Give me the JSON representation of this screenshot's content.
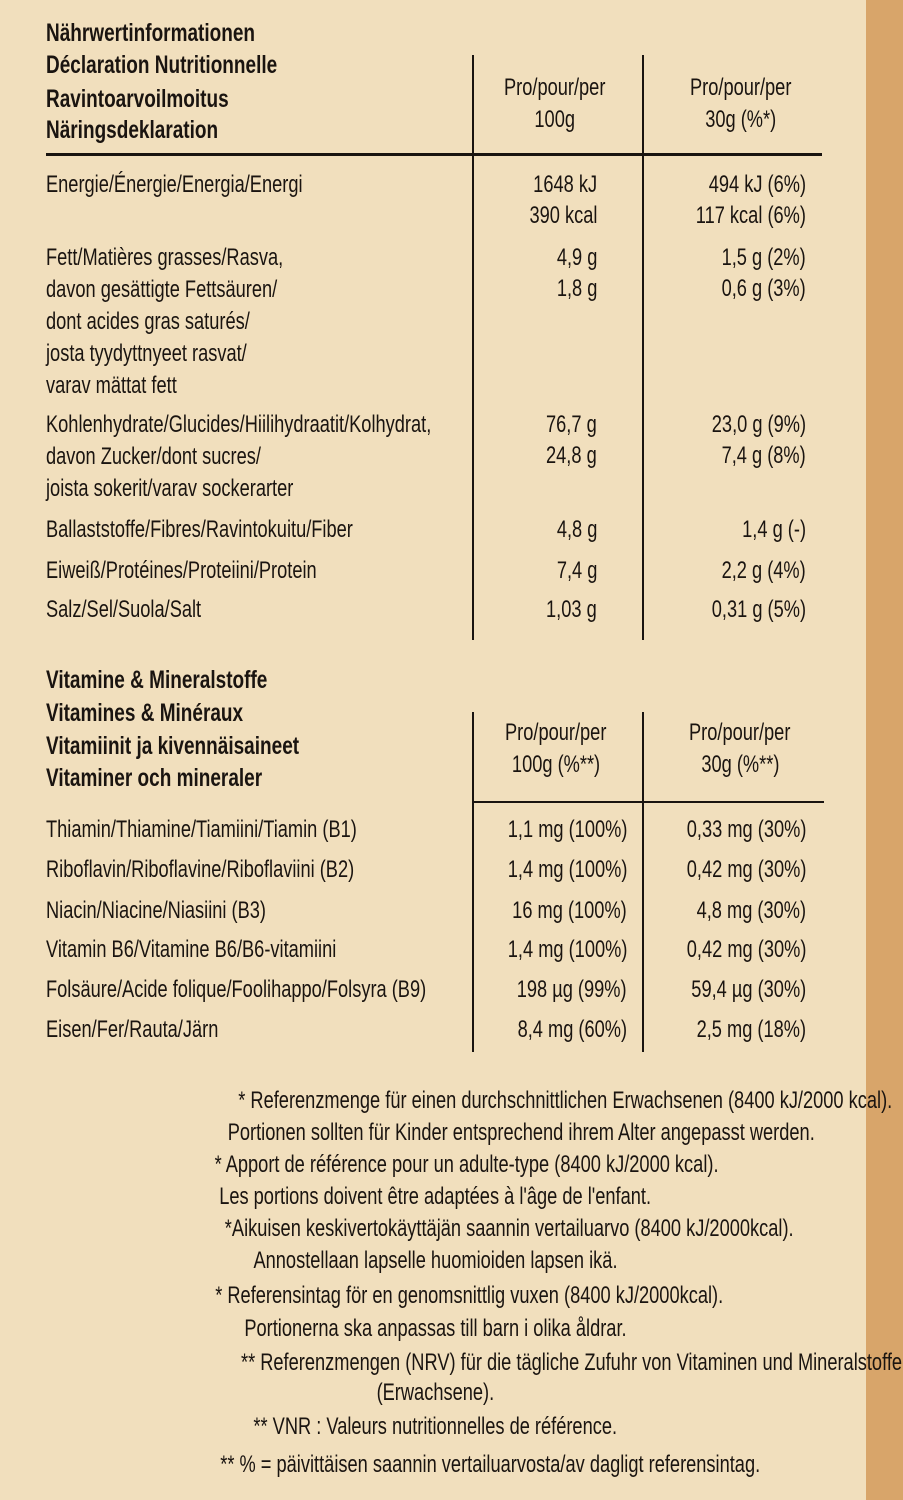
{
  "nutrition": {
    "title_lines": [
      "Nährwertinformationen",
      "Déclaration Nutritionnelle",
      "Ravintoarvoilmoitus",
      "Näringsdeklaration"
    ],
    "col1_header": [
      "Pro/pour/per",
      "100g"
    ],
    "col2_header": [
      "Pro/pour/per",
      "30g (%*)"
    ],
    "rows": [
      {
        "label": [
          "Energie/Énergie/Energia/Energi"
        ],
        "per100": [
          "1648 kJ",
          "390 kcal"
        ],
        "per30": [
          "494 kJ (6%)",
          "117 kcal (6%)"
        ]
      },
      {
        "label": [
          "Fett/Matières grasses/Rasva,",
          "davon gesättigte Fettsäuren/",
          "dont acides gras saturés/",
          "josta tyydyttnyeet rasvat/",
          "varav mättat fett"
        ],
        "per100": [
          "4,9 g",
          "1,8 g"
        ],
        "per30": [
          "1,5 g (2%)",
          "0,6 g (3%)"
        ]
      },
      {
        "label": [
          "Kohlenhydrate/Glucides/Hiilihydraatit/Kolhydrat,",
          "davon Zucker/dont sucres/",
          "joista sokerit/varav sockerarter"
        ],
        "per100": [
          "76,7 g",
          "24,8 g"
        ],
        "per30": [
          "23,0 g (9%)",
          "7,4 g (8%)"
        ]
      },
      {
        "label": [
          "Ballaststoffe/Fibres/Ravintokuitu/Fiber"
        ],
        "per100": [
          "4,8 g"
        ],
        "per30": [
          "1,4 g (-)"
        ]
      },
      {
        "label": [
          "Eiweiß/Protéines/Proteiini/Protein"
        ],
        "per100": [
          "7,4 g"
        ],
        "per30": [
          "2,2 g (4%)"
        ]
      },
      {
        "label": [
          "Salz/Sel/Suola/Salt"
        ],
        "per100": [
          "1,03 g"
        ],
        "per30": [
          "0,31 g (5%)"
        ]
      }
    ]
  },
  "vitamins": {
    "title_lines": [
      "Vitamine & Mineralstoffe",
      "Vitamines & Minéraux",
      "Vitamiinit ja kivennäisaineet",
      "Vitaminer och mineraler"
    ],
    "col1_header": [
      "Pro/pour/per",
      "100g (%**)"
    ],
    "col2_header": [
      "Pro/pour/per",
      "30g (%**)"
    ],
    "rows": [
      {
        "label": "Thiamin/Thiamine/Tiamiini/Tiamin (B1)",
        "per100": "1,1 mg (100%)",
        "per30": "0,33 mg (30%)"
      },
      {
        "label": "Riboflavin/Riboflavine/Riboflaviini (B2)",
        "per100": "1,4 mg (100%)",
        "per30": "0,42 mg (30%)"
      },
      {
        "label": "Niacin/Niacine/Niasiini (B3)",
        "per100": "16 mg (100%)",
        "per30": "4,8 mg (30%)"
      },
      {
        "label": "Vitamin B6/Vitamine B6/B6-vitamiini",
        "per100": "1,4 mg (100%)",
        "per30": "0,42 mg (30%)"
      },
      {
        "label": "Folsäure/Acide folique/Foolihappo/Folsyra (B9)",
        "per100": "198 µg (99%)",
        "per30": "59,4 µg (30%)"
      },
      {
        "label": "Eisen/Fer/Rauta/Järn",
        "per100": "8,4 mg (60%)",
        "per30": "2,5 mg (18%)"
      }
    ]
  },
  "footnotes": [
    "* Referenzmenge für einen durchschnittlichen Erwachsenen (8400 kJ/2000 kcal).",
    "Portionen sollten für Kinder entsprechend ihrem Alter angepasst werden.",
    "* Apport de référence pour un adulte-type (8400 kJ/2000 kcal).",
    "Les portions doivent être adaptées à l'âge de l'enfant.",
    "*Aikuisen keskivertokäyttäjän saannin vertailuarvo (8400 kJ/2000kcal).",
    "Annostellaan lapselle huomioiden lapsen ikä.",
    "* Referensintag för en genomsnittlig vuxen (8400 kJ/2000kcal).",
    "Portionerna ska anpassas till barn i olika åldrar.",
    "** Referenzmengen (NRV) für die tägliche Zufuhr von Vitaminen und Mineralstoffen",
    "(Erwachsene).",
    "** VNR : Valeurs nutritionnelles de référence.",
    "** % = päivittäisen saannin vertailuarvosta/av dagligt referensintag."
  ]
}
